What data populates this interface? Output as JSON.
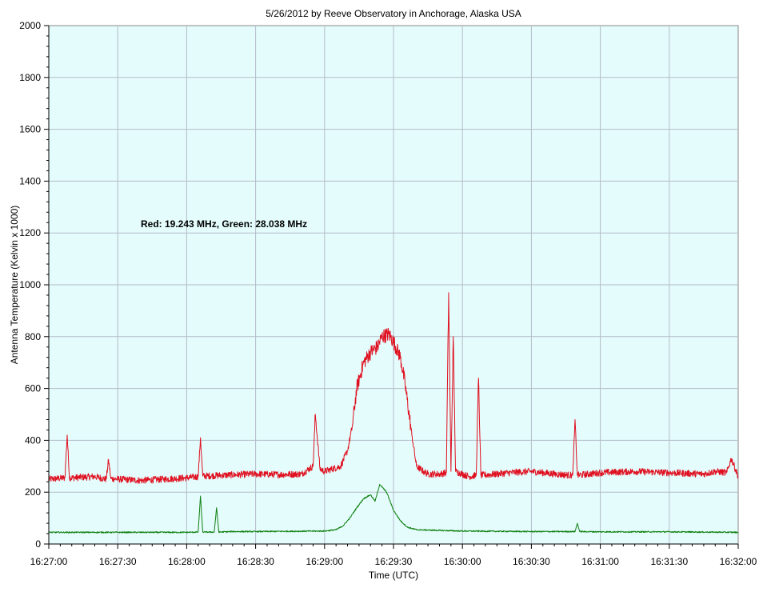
{
  "chart_data": {
    "type": "line",
    "title": "5/26/2012  by  Reeve Observatory  in  Anchorage, Alaska  USA",
    "xlabel": "Time (UTC)",
    "ylabel": "Antenna Temperature (Kelvin x 1000)",
    "annotation": "Red: 19.243 MHz, Green: 28.038 MHz",
    "xlim": [
      "16:27:00",
      "16:32:00"
    ],
    "ylim": [
      0,
      2000
    ],
    "x_ticks": [
      "16:27:00",
      "16:27:30",
      "16:28:00",
      "16:28:30",
      "16:29:00",
      "16:29:30",
      "16:30:00",
      "16:30:30",
      "16:31:00",
      "16:31:30",
      "16:32:00"
    ],
    "y_ticks": [
      0,
      200,
      400,
      600,
      800,
      1000,
      1200,
      1400,
      1600,
      1800,
      2000
    ],
    "grid": true,
    "background_color": "#e4fcfc",
    "grid_color": "#b4bcc8",
    "series": [
      {
        "color": "#e01020",
        "x": [
          "16:27:00",
          "16:27:07",
          "16:27:08",
          "16:27:09",
          "16:27:20",
          "16:27:25",
          "16:27:26",
          "16:27:27",
          "16:27:40",
          "16:27:50",
          "16:28:00",
          "16:28:05",
          "16:28:06",
          "16:28:07",
          "16:28:15",
          "16:28:30",
          "16:28:40",
          "16:28:50",
          "16:28:55",
          "16:28:56",
          "16:28:58",
          "16:29:00",
          "16:29:07",
          "16:29:10",
          "16:29:12",
          "16:29:14",
          "16:29:17",
          "16:29:20",
          "16:29:23",
          "16:29:25",
          "16:29:28",
          "16:29:30",
          "16:29:33",
          "16:29:35",
          "16:29:38",
          "16:29:40",
          "16:29:43",
          "16:29:45",
          "16:29:50",
          "16:29:53",
          "16:29:54",
          "16:29:55",
          "16:29:56",
          "16:29:57",
          "16:30:00",
          "16:30:03",
          "16:30:06",
          "16:30:07",
          "16:30:08",
          "16:30:15",
          "16:30:20",
          "16:30:30",
          "16:30:40",
          "16:30:48",
          "16:30:49",
          "16:30:50",
          "16:31:00",
          "16:31:15",
          "16:31:30",
          "16:31:45",
          "16:31:50",
          "16:31:55",
          "16:31:57",
          "16:32:00"
        ],
        "values": [
          250,
          255,
          420,
          255,
          260,
          250,
          325,
          252,
          245,
          250,
          255,
          260,
          410,
          262,
          265,
          270,
          268,
          270,
          300,
          500,
          290,
          280,
          300,
          360,
          450,
          600,
          700,
          740,
          760,
          800,
          810,
          780,
          720,
          620,
          420,
          300,
          280,
          270,
          270,
          275,
          970,
          280,
          800,
          280,
          270,
          260,
          265,
          640,
          265,
          270,
          275,
          280,
          270,
          265,
          480,
          265,
          275,
          280,
          275,
          270,
          280,
          275,
          330,
          260
        ]
      },
      {
        "color": "#108010",
        "x": [
          "16:27:00",
          "16:27:30",
          "16:28:00",
          "16:28:05",
          "16:28:06",
          "16:28:07",
          "16:28:12",
          "16:28:13",
          "16:28:14",
          "16:28:20",
          "16:28:30",
          "16:29:00",
          "16:29:05",
          "16:29:08",
          "16:29:11",
          "16:29:14",
          "16:29:17",
          "16:29:20",
          "16:29:22",
          "16:29:24",
          "16:29:27",
          "16:29:30",
          "16:29:33",
          "16:29:36",
          "16:29:40",
          "16:30:00",
          "16:30:30",
          "16:30:49",
          "16:30:50",
          "16:30:51",
          "16:31:00",
          "16:31:30",
          "16:32:00"
        ],
        "values": [
          45,
          45,
          45,
          46,
          185,
          46,
          46,
          140,
          46,
          48,
          48,
          50,
          55,
          70,
          100,
          140,
          175,
          190,
          165,
          230,
          200,
          130,
          90,
          65,
          55,
          50,
          48,
          48,
          80,
          48,
          47,
          47,
          45
        ]
      }
    ]
  }
}
